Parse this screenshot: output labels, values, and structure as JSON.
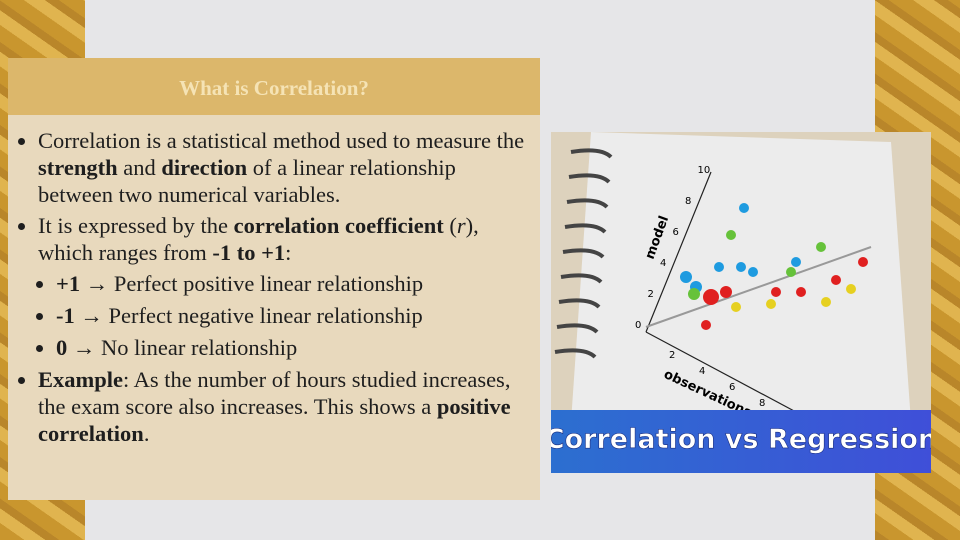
{
  "header": {
    "title": "What is Correlation?"
  },
  "bullets": [
    {
      "runs": [
        {
          "text": "Correlation is a statistical method used to measure the "
        },
        {
          "text": "strength",
          "bold": true
        },
        {
          "text": " and "
        },
        {
          "text": "direction",
          "bold": true
        },
        {
          "text": " of a linear relationship between two numerical variables."
        }
      ]
    },
    {
      "runs": [
        {
          "text": "It is expressed by the "
        },
        {
          "text": "correlation coefficient",
          "bold": true
        },
        {
          "text": " ("
        },
        {
          "text": "r",
          "italic": true
        },
        {
          "text": "), which ranges from "
        },
        {
          "text": "-1 to +1",
          "bold": true
        },
        {
          "text": ":"
        }
      ],
      "subs": [
        {
          "runs": [
            {
              "text": "+1",
              "bold": true
            },
            {
              "text": " → Perfect positive linear relationship"
            }
          ]
        },
        {
          "runs": [
            {
              "text": "-1",
              "bold": true
            },
            {
              "text": " → Perfect negative linear relationship"
            }
          ]
        },
        {
          "runs": [
            {
              "text": "0",
              "bold": true
            },
            {
              "text": " → No linear relationship"
            }
          ]
        }
      ]
    },
    {
      "runs": [
        {
          "text": "Example",
          "bold": true
        },
        {
          "text": ": As the number of hours studied increases, the exam score also increases. This shows a "
        },
        {
          "text": "positive correlation",
          "bold": true
        },
        {
          "text": "."
        }
      ]
    }
  ],
  "image": {
    "caption": "Correlation vs Regression",
    "y_label": "model",
    "x_label": "observations",
    "y_ticks": [
      0,
      2,
      4,
      6,
      8,
      10
    ],
    "x_ticks": [
      2,
      4,
      6,
      8
    ]
  }
}
